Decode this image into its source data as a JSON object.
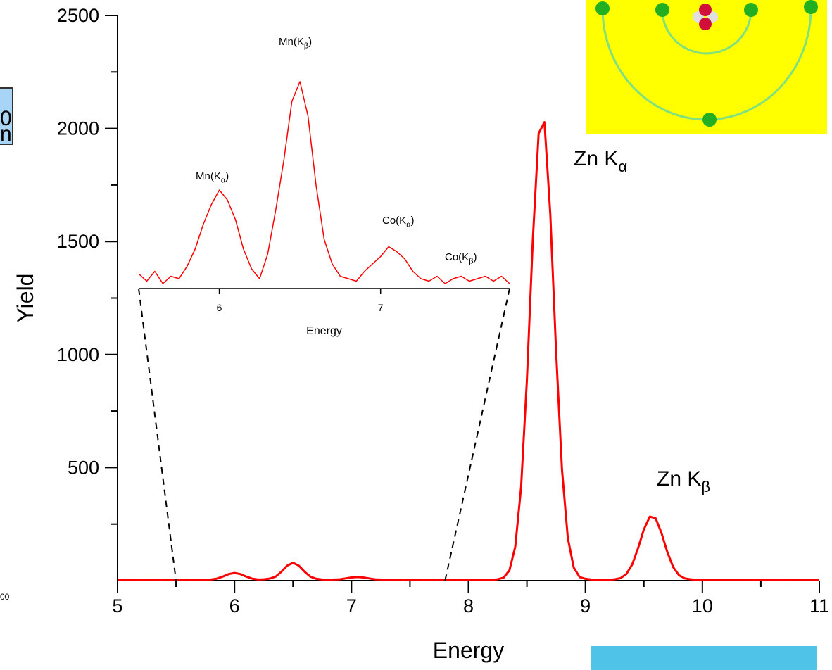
{
  "chart_data": [
    {
      "type": "line",
      "x_label": "Energy",
      "y_label": "Yield",
      "xlim": [
        5,
        11
      ],
      "ylim": [
        0,
        2500
      ],
      "xticks": [
        5,
        6,
        7,
        8,
        9,
        10,
        11
      ],
      "yticks": [
        500,
        1000,
        1500,
        2000,
        2500
      ],
      "series": [
        {
          "color": "#ff0000",
          "x": [
            5.0,
            5.1,
            5.2,
            5.3,
            5.4,
            5.5,
            5.6,
            5.7,
            5.8,
            5.85,
            5.9,
            5.95,
            6.0,
            6.05,
            6.1,
            6.15,
            6.2,
            6.25,
            6.3,
            6.35,
            6.4,
            6.45,
            6.5,
            6.55,
            6.6,
            6.65,
            6.7,
            6.75,
            6.8,
            6.9,
            6.95,
            7.0,
            7.05,
            7.1,
            7.15,
            7.2,
            7.3,
            7.4,
            7.5,
            7.6,
            7.7,
            7.8,
            7.9,
            8.0,
            8.1,
            8.2,
            8.25,
            8.3,
            8.35,
            8.4,
            8.45,
            8.5,
            8.55,
            8.6,
            8.65,
            8.7,
            8.75,
            8.8,
            8.85,
            8.9,
            8.95,
            9.0,
            9.05,
            9.1,
            9.2,
            9.25,
            9.3,
            9.35,
            9.4,
            9.45,
            9.5,
            9.55,
            9.6,
            9.65,
            9.7,
            9.75,
            9.8,
            9.85,
            9.9,
            9.95,
            10.0,
            10.2,
            10.4,
            10.6,
            10.8,
            11.0
          ],
          "values": [
            3,
            4,
            3,
            4,
            3,
            4,
            3,
            4,
            5,
            9,
            18,
            29,
            34,
            29,
            18,
            9,
            5,
            6,
            9,
            17,
            39,
            66,
            79,
            66,
            39,
            17,
            8,
            5,
            4,
            6,
            10,
            14,
            16,
            14,
            10,
            6,
            4,
            4,
            3,
            3,
            4,
            3,
            3,
            4,
            3,
            4,
            6,
            13,
            45,
            150,
            413,
            891,
            1504,
            1978,
            2028,
            1621,
            1009,
            491,
            188,
            58,
            16,
            8,
            5,
            4,
            4,
            6,
            11,
            29,
            71,
            143,
            227,
            283,
            276,
            211,
            127,
            60,
            24,
            10,
            6,
            4,
            3,
            3,
            3,
            2,
            3,
            3
          ]
        }
      ],
      "annotations": [
        {
          "text": "Zn K",
          "sub": "α"
        },
        {
          "text": "Zn K",
          "sub": "β"
        }
      ]
    },
    {
      "type": "line",
      "x_label": "Energy",
      "xlim": [
        5.5,
        7.8
      ],
      "ylim": [
        0,
        90
      ],
      "xticks": [
        6,
        7
      ],
      "series": [
        {
          "color": "#ff0000",
          "x": [
            5.5,
            5.55,
            5.6,
            5.65,
            5.7,
            5.75,
            5.8,
            5.85,
            5.9,
            5.95,
            6.0,
            6.05,
            6.1,
            6.15,
            6.2,
            6.25,
            6.3,
            6.35,
            6.4,
            6.45,
            6.5,
            6.55,
            6.6,
            6.65,
            6.7,
            6.75,
            6.8,
            6.85,
            6.9,
            6.95,
            7.0,
            7.05,
            7.1,
            7.15,
            7.2,
            7.25,
            7.3,
            7.35,
            7.4,
            7.45,
            7.5,
            7.55,
            7.6,
            7.65,
            7.7,
            7.75,
            7.8
          ],
          "values": [
            6,
            3,
            7,
            2,
            5,
            4,
            9,
            16,
            26,
            34,
            40,
            36,
            28,
            16,
            8,
            4,
            14,
            32,
            52,
            76,
            84,
            70,
            42,
            20,
            10,
            5,
            4,
            3,
            7,
            10,
            13,
            17,
            15,
            12,
            7,
            4,
            3,
            5,
            2,
            4,
            5,
            3,
            4,
            5,
            3,
            5,
            2
          ]
        }
      ],
      "annotations": [
        {
          "text": "Mn(K",
          "sub": "α",
          "tail": ")"
        },
        {
          "text": "Mn(K",
          "sub": "β",
          "tail": ")"
        },
        {
          "text": "Co(K",
          "sub": "α",
          "tail": ")"
        },
        {
          "text": "Co(K",
          "sub": "β",
          "tail": ")"
        }
      ]
    }
  ],
  "cropped_labels": [
    "0",
    "n",
    "00"
  ]
}
